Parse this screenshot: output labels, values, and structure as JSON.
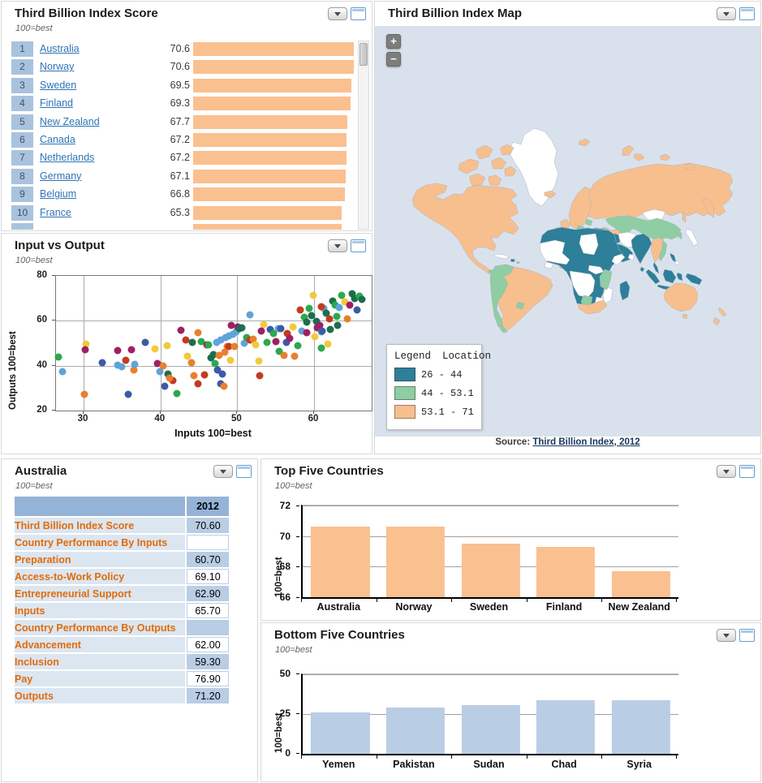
{
  "icons": {
    "panel_dropdown": "triangle-down",
    "zoom_in": "+",
    "zoom_out": "−"
  },
  "panels": {
    "index_score": {
      "title": "Third Billion Index Score",
      "subtitle": "100=best"
    },
    "scatter": {
      "title": "Input vs Output",
      "subtitle": "100=best"
    },
    "map": {
      "title": "Third Billion Index Map",
      "source_prefix": "Source:",
      "source_link": "Third Billion Index, 2012",
      "ocean_color": "#d9e2ec",
      "colors": {
        "low": "#2e7f99",
        "mid": "#8fcda3",
        "high": "#f7bf8e",
        "none": "#ffffff"
      },
      "legend": {
        "col1": "Legend",
        "col2": "Location",
        "entries": [
          {
            "label": "26 - 44",
            "key": "low"
          },
          {
            "label": "44 - 53.1",
            "key": "mid"
          },
          {
            "label": "53.1 - 71",
            "key": "high"
          }
        ]
      }
    },
    "australia": {
      "title": "Australia",
      "subtitle": "100=best",
      "year_header": "2012",
      "rows": [
        {
          "label": "Third Billion Index Score",
          "value": "70.60",
          "indent": false
        },
        {
          "label": "Country Performance By Inputs",
          "value": "",
          "indent": false
        },
        {
          "label": "Preparation",
          "value": "60.70",
          "indent": true
        },
        {
          "label": "Access-to-Work Policy",
          "value": "69.10",
          "indent": true
        },
        {
          "label": "Entrepreneurial Support",
          "value": "62.90",
          "indent": true
        },
        {
          "label": "Inputs",
          "value": "65.70",
          "indent": true
        },
        {
          "label": "Country Performance By Outputs",
          "value": "",
          "indent": false
        },
        {
          "label": "Advancement",
          "value": "62.00",
          "indent": true
        },
        {
          "label": "Inclusion",
          "value": "59.30",
          "indent": true
        },
        {
          "label": "Pay",
          "value": "76.90",
          "indent": true
        },
        {
          "label": "Outputs",
          "value": "71.20",
          "indent": true
        }
      ]
    },
    "top_five": {
      "title": "Top Five Countries",
      "subtitle": "100=best"
    },
    "bottom_five": {
      "title": "Bottom Five Countries",
      "subtitle": "100=best"
    }
  },
  "chart_data": [
    {
      "type": "bar",
      "orientation": "horizontal",
      "title": "Third Billion Index Score",
      "subtitle": "100=best",
      "bar_color": "#fac090",
      "rank_bg": "#a9c3de",
      "scale_ref": 70.6,
      "rows": [
        {
          "rank": 1,
          "country": "Australia",
          "score": "70.6",
          "value": 70.6
        },
        {
          "rank": 2,
          "country": "Norway",
          "score": "70.6",
          "value": 70.6
        },
        {
          "rank": 3,
          "country": "Sweden",
          "score": "69.5",
          "value": 69.5
        },
        {
          "rank": 4,
          "country": "Finland",
          "score": "69.3",
          "value": 69.3
        },
        {
          "rank": 5,
          "country": "New Zealand",
          "score": "67.7",
          "value": 67.7
        },
        {
          "rank": 6,
          "country": "Canada",
          "score": "67.2",
          "value": 67.2
        },
        {
          "rank": 7,
          "country": "Netherlands",
          "score": "67.2",
          "value": 67.2
        },
        {
          "rank": 8,
          "country": "Germany",
          "score": "67.1",
          "value": 67.1
        },
        {
          "rank": 9,
          "country": "Belgium",
          "score": "66.8",
          "value": 66.8
        },
        {
          "rank": 10,
          "country": "France",
          "score": "65.3",
          "value": 65.3
        }
      ],
      "partial_row": {
        "value": 65.1
      }
    },
    {
      "type": "scatter",
      "title": "Input vs Output",
      "subtitle": "100=best",
      "xlabel": "Inputs  100=best",
      "ylabel": "Outputs 100=best",
      "xlim": [
        26.4,
        67.5
      ],
      "ylim": [
        20,
        80
      ],
      "x_ticks": [
        30,
        40,
        50,
        60
      ],
      "y_ticks": [
        20,
        40,
        60,
        80
      ],
      "x_gridlines": [
        30,
        40,
        50,
        60
      ],
      "y_gridlines": [
        40,
        60
      ],
      "palette": [
        "#3b5ba5",
        "#5ea4d9",
        "#e97f2e",
        "#c23b22",
        "#9e2162",
        "#2da84e",
        "#1b6f4c",
        "#f2c93c"
      ],
      "points": [
        [
          26.7,
          43.7,
          5
        ],
        [
          27.2,
          37.5,
          1
        ],
        [
          30.3,
          49.8,
          7
        ],
        [
          30.2,
          47.2,
          4
        ],
        [
          30.1,
          27.2,
          2
        ],
        [
          32.4,
          41.2,
          0
        ],
        [
          34.4,
          40.2,
          1
        ],
        [
          35.0,
          39.6,
          1
        ],
        [
          35.5,
          42.3,
          3
        ],
        [
          34.4,
          46.9,
          4
        ],
        [
          36.2,
          47.2,
          4
        ],
        [
          36.5,
          38.2,
          2
        ],
        [
          35.8,
          27.3,
          0
        ],
        [
          38.0,
          50.3,
          0
        ],
        [
          36.7,
          40.5,
          1
        ],
        [
          39.3,
          47.4,
          7
        ],
        [
          39.6,
          40.8,
          4
        ],
        [
          39.9,
          37.3,
          1
        ],
        [
          40.3,
          39.9,
          2
        ],
        [
          40.6,
          31.0,
          0
        ],
        [
          41.0,
          36.3,
          6
        ],
        [
          41.6,
          33.4,
          3
        ],
        [
          41.2,
          34.6,
          2
        ],
        [
          42.7,
          55.9,
          4
        ],
        [
          40.9,
          48.9,
          7
        ],
        [
          43.3,
          51.3,
          3
        ],
        [
          44.9,
          54.6,
          2
        ],
        [
          44.1,
          50.3,
          6
        ],
        [
          45.3,
          50.7,
          5
        ],
        [
          46.1,
          49.2,
          4
        ],
        [
          42.1,
          27.7,
          5
        ],
        [
          43.5,
          44.2,
          7
        ],
        [
          44.0,
          41.4,
          2
        ],
        [
          44.4,
          35.7,
          2
        ],
        [
          44.9,
          31.9,
          3
        ],
        [
          45.7,
          35.9,
          3
        ],
        [
          46.6,
          43.4,
          6
        ],
        [
          46.9,
          44.9,
          6
        ],
        [
          47.1,
          40.9,
          5
        ],
        [
          47.4,
          37.9,
          0
        ],
        [
          47.9,
          31.9,
          0
        ],
        [
          48.3,
          30.8,
          2
        ],
        [
          48.1,
          36.4,
          0
        ],
        [
          46.3,
          49.4,
          5
        ],
        [
          47.6,
          44.4,
          2
        ],
        [
          48.4,
          45.9,
          2
        ],
        [
          48.7,
          48.4,
          2
        ],
        [
          49.1,
          42.4,
          7
        ],
        [
          48.9,
          53.4,
          1
        ],
        [
          48.5,
          52.4,
          1
        ],
        [
          47.9,
          51.4,
          1
        ],
        [
          47.3,
          50.4,
          1
        ],
        [
          49.4,
          53.9,
          1
        ],
        [
          49.9,
          54.9,
          1
        ],
        [
          50.1,
          57.4,
          4
        ],
        [
          49.2,
          58.1,
          4
        ],
        [
          50.3,
          56.4,
          6
        ],
        [
          50.6,
          56.9,
          6
        ],
        [
          48.9,
          48.6,
          3
        ],
        [
          49.6,
          48.7,
          2
        ],
        [
          50.9,
          49.9,
          1
        ],
        [
          51.2,
          52.4,
          5
        ],
        [
          51.6,
          51.4,
          3
        ],
        [
          52.1,
          51.9,
          2
        ],
        [
          51.7,
          62.7,
          1
        ],
        [
          52.4,
          49.4,
          7
        ],
        [
          52.8,
          41.9,
          7
        ],
        [
          53.5,
          58.4,
          7
        ],
        [
          54.3,
          56.2,
          0
        ],
        [
          53.1,
          55.4,
          4
        ],
        [
          52.9,
          35.4,
          3
        ],
        [
          53.9,
          50.4,
          5
        ],
        [
          54.7,
          54.4,
          5
        ],
        [
          55.3,
          56.4,
          1
        ],
        [
          55.7,
          56.4,
          0
        ],
        [
          55.0,
          50.9,
          4
        ],
        [
          55.5,
          46.4,
          5
        ],
        [
          56.4,
          50.4,
          0
        ],
        [
          56.1,
          44.4,
          2
        ],
        [
          57.3,
          57.4,
          7
        ],
        [
          57.5,
          44.2,
          2
        ],
        [
          56.5,
          54.3,
          3
        ],
        [
          57.9,
          48.9,
          5
        ],
        [
          58.2,
          64.8,
          3
        ],
        [
          58.7,
          61.4,
          5
        ],
        [
          59.1,
          59.4,
          6
        ],
        [
          59.4,
          65.7,
          5
        ],
        [
          59.7,
          62.4,
          6
        ],
        [
          59.9,
          71.2,
          7
        ],
        [
          60.3,
          59.9,
          6
        ],
        [
          60.4,
          56.9,
          4
        ],
        [
          60.7,
          57.9,
          4
        ],
        [
          60.9,
          54.9,
          1
        ],
        [
          61.1,
          55.4,
          0
        ],
        [
          61.3,
          65.4,
          1
        ],
        [
          61.0,
          66.4,
          3
        ],
        [
          61.6,
          63.4,
          6
        ],
        [
          62.0,
          60.9,
          3
        ],
        [
          62.4,
          68.9,
          6
        ],
        [
          62.7,
          66.9,
          5
        ],
        [
          63.0,
          61.9,
          5
        ],
        [
          63.3,
          65.9,
          1
        ],
        [
          63.6,
          71.4,
          5
        ],
        [
          64.0,
          68.4,
          7
        ],
        [
          64.3,
          60.9,
          2
        ],
        [
          64.6,
          66.9,
          4
        ],
        [
          65.0,
          71.9,
          6
        ],
        [
          65.3,
          69.9,
          6
        ],
        [
          65.6,
          64.9,
          0
        ],
        [
          65.9,
          70.9,
          5
        ],
        [
          66.2,
          69.4,
          6
        ],
        [
          61.8,
          49.6,
          7
        ],
        [
          60.9,
          47.9,
          5
        ],
        [
          58.4,
          55.4,
          1
        ],
        [
          59.0,
          54.6,
          4
        ],
        [
          60.1,
          52.9,
          7
        ],
        [
          62.1,
          56.1,
          6
        ],
        [
          63.1,
          57.9,
          6
        ],
        [
          56.8,
          52.0,
          4
        ]
      ]
    },
    {
      "type": "bar",
      "title": "Top Five Countries",
      "subtitle": "100=best",
      "ylabel": "100=best",
      "categories": [
        "Australia",
        "Norway",
        "Sweden",
        "Finland",
        "New Zealand"
      ],
      "values": [
        70.6,
        70.6,
        69.5,
        69.3,
        67.7
      ],
      "ylim": [
        66,
        72
      ],
      "y_ticks": [
        66,
        68,
        70,
        72
      ],
      "gridlines": [
        68,
        70,
        72
      ],
      "bar_color": "#fac090"
    },
    {
      "type": "bar",
      "title": "Bottom Five Countries",
      "subtitle": "100=best",
      "ylabel": "100=best",
      "categories": [
        "Yemen",
        "Pakistan",
        "Sudan",
        "Chad",
        "Syria"
      ],
      "values": [
        26,
        29,
        30.5,
        33.8,
        33.8
      ],
      "ylim": [
        0,
        50
      ],
      "y_ticks": [
        0,
        25,
        50
      ],
      "gridlines": [
        25,
        50
      ],
      "bar_color": "#b9cde4"
    }
  ]
}
